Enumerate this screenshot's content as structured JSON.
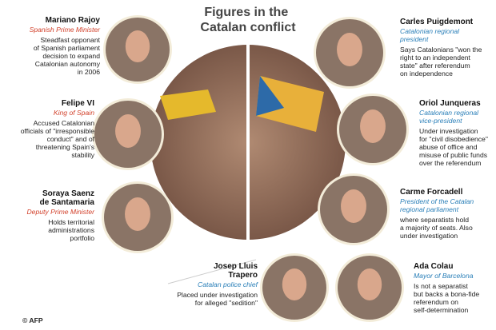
{
  "title": [
    "Figures in the",
    "Catalan conflict"
  ],
  "people": [
    {
      "name": [
        "Mariano Rajoy"
      ],
      "role": [
        "Spanish Prime Minister"
      ],
      "desc": [
        "Steadfast opponant",
        "of Spanish parliament",
        "decision to expand",
        "Catalonian autonomy",
        "in 2006"
      ]
    },
    {
      "name": [
        "Felipe VI"
      ],
      "role": [
        "King of Spain"
      ],
      "desc": [
        "Accused Catalonian",
        "officials of \"irresponsible",
        "conduct\" and of",
        "threatening Spain's",
        "stability"
      ]
    },
    {
      "name": [
        "Soraya Saenz",
        "de Santamaria"
      ],
      "role": [
        "Deputy Prime Minister"
      ],
      "desc": [
        "Holds territorial",
        "administrations",
        "portfolio"
      ]
    },
    {
      "name": [
        "Carles Puigdemont"
      ],
      "role": [
        "Catalonian regional",
        "president"
      ],
      "desc": [
        "Says Catalonians \"won the",
        "right to an independent",
        "state\" after referendum",
        "on independence"
      ]
    },
    {
      "name": [
        "Oriol Junqueras"
      ],
      "role": [
        "Catalonian regional",
        "vice-president"
      ],
      "desc": [
        "Under investigation",
        "for \"civil disobedience\"",
        "abuse of office and",
        "misuse of public funds",
        "over the referendum"
      ]
    },
    {
      "name": [
        "Carme Forcadell"
      ],
      "role": [
        "President of the Catalan",
        "regional parliament"
      ],
      "desc": [
        "where separatists hold",
        "a majority of seats. Also",
        "under investigation"
      ]
    },
    {
      "name": [
        "Josep Lluis",
        "Trapero"
      ],
      "role": [
        "Catalan police chief"
      ],
      "desc": [
        "Placed under investigation",
        "for alleged \"sedition\""
      ]
    },
    {
      "name": [
        "Ada Colau"
      ],
      "role": [
        "Mayor of Barcelona"
      ],
      "desc": [
        "Is not a separatist",
        "but backs a bona-fide",
        "referendum on",
        "self-determination"
      ]
    }
  ],
  "credit": "AFP"
}
